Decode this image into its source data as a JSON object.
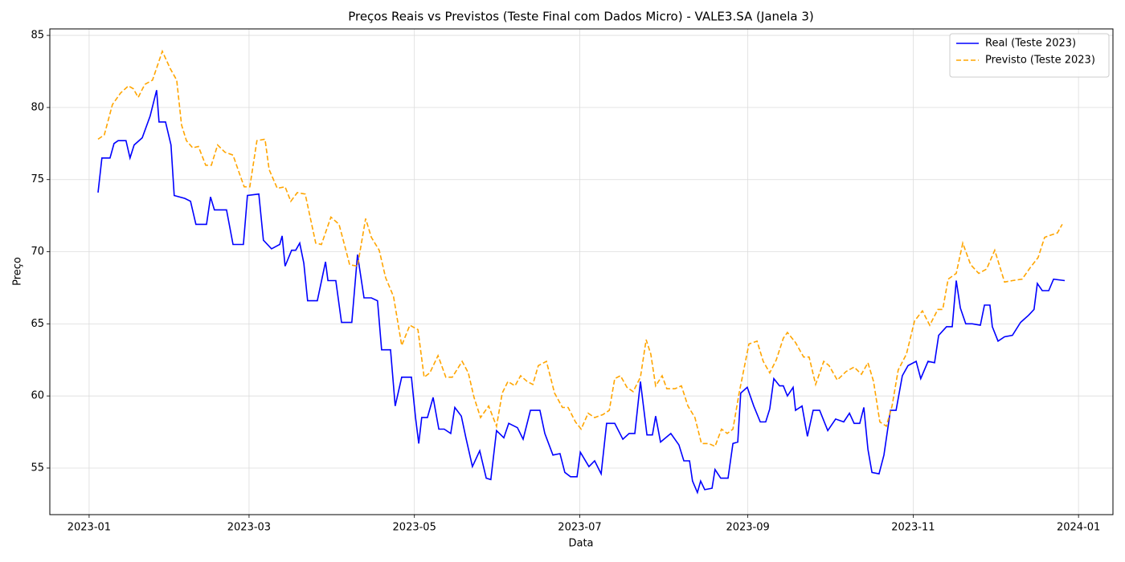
{
  "chart_data": {
    "type": "line",
    "title": "Preços Reais vs Previstos (Teste Final com Dados Micro) - VALE3.SA (Janela 3)",
    "x_label": "Data",
    "y_label": "Preço",
    "xlim": [
      -14.5,
      377.7
    ],
    "xticks": [
      {
        "value": 0,
        "label": "2023-01"
      },
      {
        "value": 59,
        "label": "2023-03"
      },
      {
        "value": 120,
        "label": "2023-05"
      },
      {
        "value": 181,
        "label": "2023-07"
      },
      {
        "value": 243,
        "label": "2023-09"
      },
      {
        "value": 304,
        "label": "2023-11"
      },
      {
        "value": 365,
        "label": "2024-01"
      }
    ],
    "ylim": [
      51.77,
      85.45
    ],
    "yticks": [
      55,
      60,
      65,
      70,
      75,
      80,
      85
    ],
    "grid": true,
    "legend": "upper right",
    "series": [
      {
        "name": "Real (Teste 2023)",
        "color": "#0000ff",
        "dash": false,
        "x": [
          3.3,
          4.7,
          7.7,
          9.2,
          10.7,
          13.6,
          15.1,
          16.6,
          19.6,
          22.5,
          24.9,
          25.8,
          28.2,
          30.2,
          31.4,
          35.3,
          37.4,
          39.4,
          43.3,
          44.8,
          46.2,
          50.7,
          53.1,
          56.9,
          58.4,
          62.6,
          64.3,
          67.3,
          70.3,
          71.2,
          72.3,
          74.7,
          76.2,
          77.7,
          79.2,
          80.6,
          84.2,
          87.2,
          88.1,
          91.0,
          93.1,
          96.9,
          99.0,
          101.4,
          104.1,
          106.4,
          107.9,
          111.2,
          112.9,
          115.3,
          118.9,
          120.4,
          121.6,
          122.7,
          124.8,
          126.9,
          129.0,
          131.0,
          133.4,
          134.9,
          137.3,
          139.0,
          141.4,
          144.1,
          146.5,
          148.2,
          150.3,
          153.0,
          154.8,
          158.0,
          160.1,
          162.8,
          166.3,
          168.1,
          171.1,
          173.7,
          175.5,
          177.6,
          180.0,
          181.2,
          184.4,
          186.5,
          188.9,
          190.9,
          193.9,
          196.9,
          199.2,
          201.3,
          203.4,
          205.8,
          207.8,
          209.0,
          210.8,
          214.6,
          217.6,
          219.4,
          221.5,
          222.6,
          224.4,
          225.6,
          227.1,
          229.8,
          230.9,
          233.0,
          235.7,
          237.5,
          239.3,
          240.4,
          242.8,
          245.2,
          247.6,
          249.6,
          251.1,
          252.6,
          254.7,
          256.1,
          257.6,
          259.7,
          260.6,
          263.0,
          265.0,
          267.1,
          269.5,
          272.5,
          275.4,
          278.4,
          280.5,
          282.2,
          284.3,
          285.8,
          287.3,
          288.8,
          291.4,
          293.2,
          295.6,
          297.7,
          300.0,
          302.1,
          305.1,
          306.8,
          309.5,
          311.9,
          313.4,
          316.3,
          318.4,
          319.9,
          321.4,
          323.4,
          325.8,
          328.8,
          330.3,
          332.3,
          333.2,
          335.3,
          337.7,
          340.6,
          343.6,
          346.6,
          348.6,
          349.8,
          351.6,
          354.0,
          355.8,
          359.9
        ],
        "values": [
          74.1,
          76.5,
          76.5,
          77.5,
          77.7,
          77.7,
          76.5,
          77.4,
          77.9,
          79.4,
          81.2,
          79.0,
          79.0,
          77.4,
          73.9,
          73.7,
          73.5,
          71.9,
          71.9,
          73.8,
          72.9,
          72.9,
          70.5,
          70.5,
          73.9,
          74.0,
          70.8,
          70.2,
          70.5,
          71.1,
          69.0,
          70.1,
          70.1,
          70.6,
          69.2,
          66.6,
          66.6,
          69.3,
          68.0,
          68.0,
          65.1,
          65.1,
          69.8,
          66.8,
          66.8,
          66.6,
          63.2,
          63.2,
          59.3,
          61.3,
          61.3,
          58.5,
          56.7,
          58.5,
          58.5,
          59.9,
          57.7,
          57.7,
          57.4,
          59.2,
          58.6,
          57.1,
          55.1,
          56.2,
          54.3,
          54.2,
          57.6,
          57.1,
          58.1,
          57.8,
          57.0,
          59.0,
          59.0,
          57.4,
          55.9,
          56.0,
          54.7,
          54.4,
          54.4,
          56.1,
          55.1,
          55.5,
          54.6,
          58.1,
          58.1,
          57.0,
          57.4,
          57.4,
          61.0,
          57.3,
          57.3,
          58.6,
          56.8,
          57.4,
          56.6,
          55.5,
          55.5,
          54.1,
          53.3,
          54.1,
          53.5,
          53.6,
          54.9,
          54.3,
          54.3,
          56.7,
          56.8,
          60.2,
          60.6,
          59.3,
          58.2,
          58.2,
          59.1,
          61.2,
          60.7,
          60.7,
          60.0,
          60.6,
          59.0,
          59.3,
          57.2,
          59.0,
          59.0,
          57.6,
          58.4,
          58.2,
          58.8,
          58.1,
          58.1,
          59.2,
          56.3,
          54.7,
          54.6,
          55.9,
          59.0,
          59.0,
          61.4,
          62.1,
          62.4,
          61.2,
          62.4,
          62.3,
          64.2,
          64.8,
          64.8,
          68.0,
          66.1,
          65.0,
          65.0,
          64.9,
          66.3,
          66.3,
          64.8,
          63.8,
          64.1,
          64.2,
          65.1,
          65.6,
          66.0,
          67.8,
          67.3,
          67.3,
          68.1,
          68.0
        ]
      },
      {
        "name": "Previsto (Teste 2023)",
        "color": "#ffa500",
        "dash": true,
        "x": [
          3.3,
          5.6,
          8.6,
          11.6,
          14.5,
          16.3,
          18.1,
          20.5,
          23.4,
          27.0,
          29.9,
          32.3,
          34.1,
          35.9,
          38.2,
          40.3,
          43.0,
          45.1,
          47.4,
          50.1,
          53.1,
          55.1,
          57.2,
          59.3,
          61.9,
          64.9,
          66.4,
          69.4,
          72.3,
          74.4,
          76.8,
          79.7,
          81.2,
          83.6,
          85.7,
          89.2,
          92.2,
          94.6,
          96.1,
          99.0,
          102.0,
          104.1,
          107.0,
          109.4,
          112.3,
          115.3,
          118.3,
          121.3,
          123.6,
          125.7,
          128.7,
          131.6,
          134.0,
          137.6,
          139.9,
          142.0,
          144.4,
          147.4,
          150.3,
          152.4,
          154.5,
          157.1,
          159.2,
          161.6,
          163.7,
          165.7,
          168.7,
          171.7,
          174.6,
          176.7,
          179.4,
          181.5,
          184.1,
          186.5,
          189.5,
          191.9,
          193.9,
          196.0,
          198.4,
          200.7,
          203.4,
          205.5,
          207.2,
          209.0,
          211.4,
          213.1,
          216.1,
          218.5,
          220.9,
          223.5,
          225.9,
          228.6,
          230.9,
          233.3,
          235.4,
          237.5,
          239.8,
          243.4,
          246.4,
          248.7,
          251.1,
          253.5,
          256.1,
          257.6,
          260.6,
          263.6,
          265.6,
          268.0,
          271.0,
          273.0,
          276.0,
          279.3,
          282.2,
          284.9,
          287.3,
          289.4,
          291.7,
          294.1,
          296.2,
          298.5,
          301.5,
          304.5,
          307.4,
          310.1,
          313.1,
          314.9,
          316.9,
          319.9,
          322.3,
          325.2,
          328.2,
          331.1,
          334.1,
          337.7,
          340.6,
          344.2,
          347.2,
          350.1,
          352.5,
          355.5,
          357.2,
          359.0
        ],
        "values": [
          77.8,
          78.1,
          80.2,
          81.0,
          81.5,
          81.3,
          80.7,
          81.6,
          81.9,
          83.9,
          82.7,
          81.9,
          78.8,
          77.7,
          77.2,
          77.3,
          76.0,
          76.0,
          77.4,
          76.9,
          76.7,
          75.6,
          74.5,
          74.5,
          77.7,
          77.8,
          75.7,
          74.4,
          74.5,
          73.5,
          74.1,
          74.0,
          72.7,
          70.6,
          70.5,
          72.4,
          71.9,
          70.2,
          69.1,
          69.0,
          72.3,
          71.0,
          70.1,
          68.2,
          66.9,
          63.5,
          64.9,
          64.6,
          61.3,
          61.6,
          62.8,
          61.3,
          61.3,
          62.4,
          61.6,
          59.9,
          58.5,
          59.3,
          57.9,
          60.2,
          61.0,
          60.7,
          61.4,
          61.0,
          60.8,
          62.1,
          62.4,
          60.2,
          59.2,
          59.2,
          58.2,
          57.7,
          58.8,
          58.5,
          58.7,
          59.0,
          61.2,
          61.4,
          60.6,
          60.3,
          61.3,
          63.9,
          62.9,
          60.7,
          61.4,
          60.5,
          60.5,
          60.7,
          59.3,
          58.5,
          56.7,
          56.7,
          56.5,
          57.7,
          57.4,
          57.7,
          60.2,
          63.6,
          63.8,
          62.4,
          61.6,
          62.5,
          64.0,
          64.4,
          63.7,
          62.7,
          62.7,
          60.8,
          62.4,
          62.1,
          61.1,
          61.7,
          62.0,
          61.5,
          62.3,
          61.0,
          58.2,
          57.9,
          59.3,
          61.8,
          62.9,
          65.2,
          65.9,
          64.9,
          66.0,
          66.0,
          68.1,
          68.5,
          70.6,
          69.1,
          68.5,
          68.8,
          70.1,
          67.9,
          68.0,
          68.1,
          68.9,
          69.6,
          71.0,
          71.2,
          71.3,
          71.9
        ]
      }
    ]
  }
}
